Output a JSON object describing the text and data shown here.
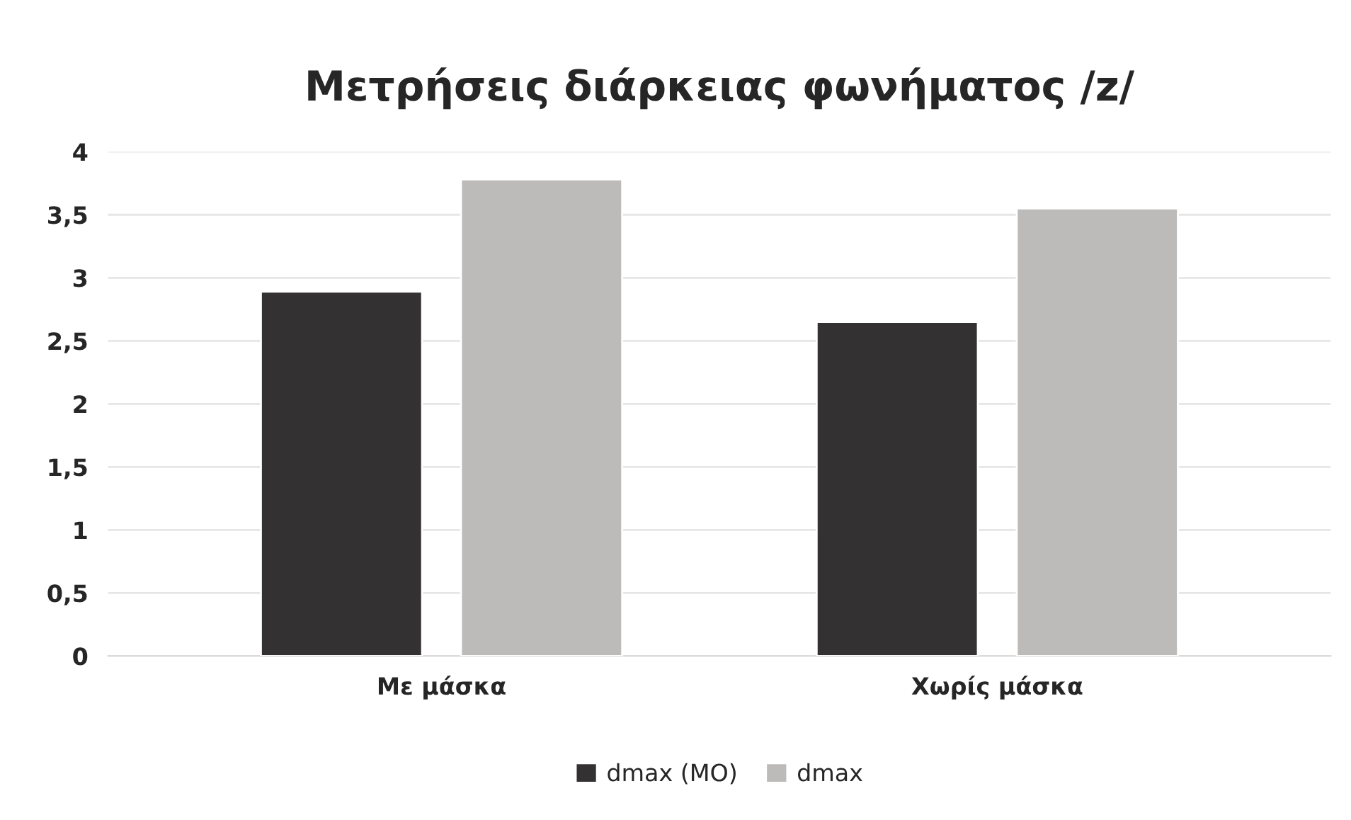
{
  "chart_data": {
    "type": "bar",
    "title": "Μετρήσεις διάρκειας φωνήματος /z/",
    "categories": [
      "Με μάσκα",
      "Χωρίς μάσκα"
    ],
    "series": [
      {
        "name": "dmax (MO)",
        "color": "#333132",
        "values": [
          2.89,
          2.65
        ]
      },
      {
        "name": "dmax",
        "color": "#bcbbba",
        "values": [
          3.78,
          3.55
        ]
      }
    ],
    "ylim": [
      0,
      4
    ],
    "yticks": [
      0,
      {
        "value": 0.5,
        "label": "0,5"
      },
      1,
      {
        "value": 1.5,
        "label": "1,5"
      },
      2,
      {
        "value": 2.5,
        "label": "2,5"
      },
      3,
      {
        "value": 3.5,
        "label": "3,5"
      },
      4
    ],
    "grid": "y",
    "legend": "bottom"
  }
}
